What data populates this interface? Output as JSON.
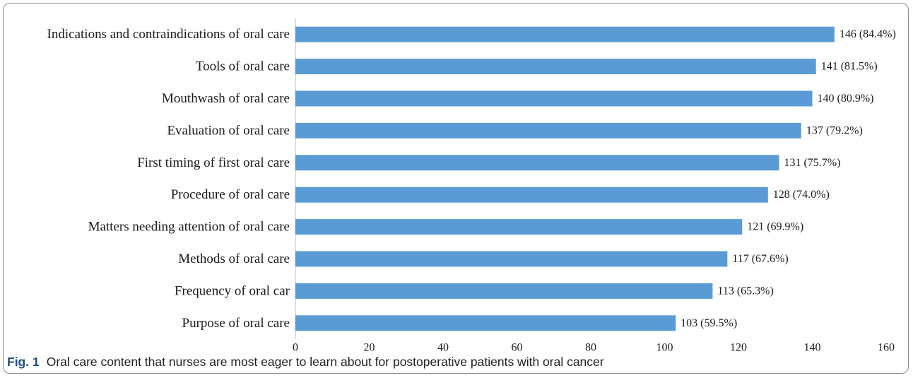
{
  "chart_data": {
    "type": "bar",
    "orientation": "horizontal",
    "categories": [
      "Indications and contraindications of oral care",
      "Tools of oral care",
      "Mouthwash of oral care",
      "Evaluation of oral care",
      "First timing of first oral care",
      "Procedure of oral care",
      "Matters needing attention of oral care",
      "Methods of oral care",
      "Frequency of oral car",
      "Purpose of oral care"
    ],
    "values": [
      146,
      141,
      140,
      137,
      131,
      128,
      121,
      117,
      113,
      103
    ],
    "value_labels": [
      "146 (84.4%)",
      "141 (81.5%)",
      "140 (80.9%)",
      "137 (79.2%)",
      "131 (75.7%)",
      "128 (74.0%)",
      "121 (69.9%)",
      "117 (67.6%)",
      "113 (65.3%)",
      "103 (59.5%)"
    ],
    "xlim": [
      0,
      160
    ],
    "xticks": [
      "0",
      "20",
      "40",
      "60",
      "80",
      "100",
      "120",
      "140",
      "160"
    ],
    "bar_color": "#5b9bd5",
    "grid": false,
    "legend": "none"
  },
  "caption": {
    "fig_label": "Fig. 1",
    "text": "Oral care content that nurses are most eager to learn about for postoperative patients with oral cancer"
  }
}
